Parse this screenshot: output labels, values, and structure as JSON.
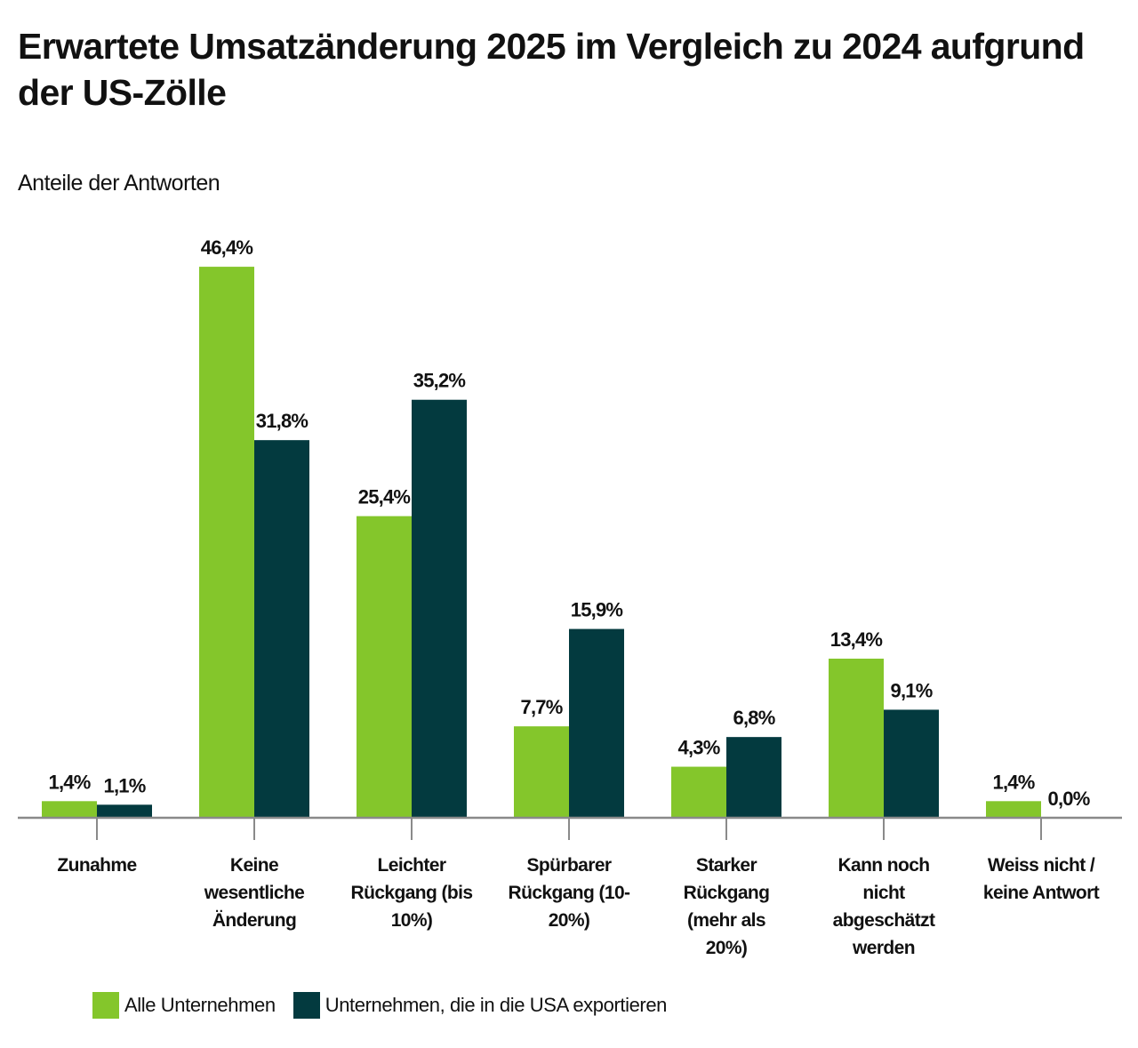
{
  "colors": {
    "alle": "#84c62b",
    "usa": "#033a3f",
    "axis": "#8a8a8a",
    "text": "#111111"
  },
  "chart_data": {
    "type": "bar",
    "title": "Erwartete Umsatzänderung 2025 im Vergleich zu 2024 aufgrund der US-Zölle",
    "subtitle": "Anteile der Antworten",
    "xlabel": "",
    "ylabel": "",
    "ylim": [
      0,
      50
    ],
    "grid": false,
    "legend_position": "bottom-left",
    "categories": [
      [
        "Zunahme"
      ],
      [
        "Keine",
        "wesentliche",
        "Änderung"
      ],
      [
        "Leichter",
        "Rückgang (bis",
        "10%)"
      ],
      [
        "Spürbarer",
        "Rückgang (10-",
        "20%)"
      ],
      [
        "Starker",
        "Rückgang",
        "(mehr als",
        "20%)"
      ],
      [
        "Kann noch",
        "nicht",
        "abgeschätzt",
        "werden"
      ],
      [
        "Weiss nicht /",
        "keine Antwort"
      ]
    ],
    "series": [
      {
        "name": "Alle Unternehmen",
        "color_key": "alle",
        "values": [
          1.4,
          46.4,
          25.4,
          7.7,
          4.3,
          13.4,
          1.4
        ],
        "labels": [
          "1,4%",
          "46,4%",
          "25,4%",
          "7,7%",
          "4,3%",
          "13,4%",
          "1,4%"
        ]
      },
      {
        "name": "Unternehmen, die in die USA exportieren",
        "color_key": "usa",
        "values": [
          1.1,
          31.8,
          35.2,
          15.9,
          6.8,
          9.1,
          0.0
        ],
        "labels": [
          "1,1%",
          "31,8%",
          "35,2%",
          "15,9%",
          "6,8%",
          "9,1%",
          "0,0%"
        ]
      }
    ]
  },
  "header": {
    "title": "Erwartete Umsatzänderung 2025 im Vergleich zu 2024 aufgrund der US-Zölle",
    "subtitle": "Anteile der Antworten"
  },
  "legend": {
    "items": [
      {
        "label": "Alle Unternehmen",
        "color_key": "alle"
      },
      {
        "label": "Unternehmen, die in die USA exportieren",
        "color_key": "usa"
      }
    ]
  }
}
